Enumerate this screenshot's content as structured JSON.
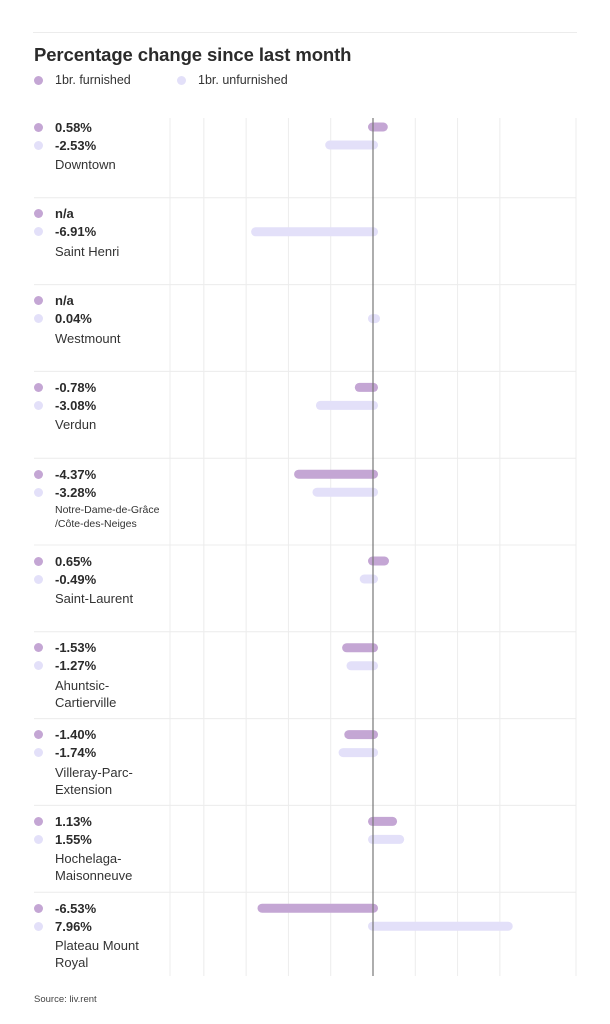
{
  "colors": {
    "furnished": "#c4a6d4",
    "unfurnished": "#e3e0f9",
    "zero_line": "#777777",
    "grid": "#ececec"
  },
  "chart_data": {
    "type": "bar",
    "orientation": "horizontal",
    "title": "Percentage change since last month",
    "legend": [
      "1br. furnished",
      "1br. unfurnished"
    ],
    "legend_placement": "top-left",
    "grid": true,
    "xlim": [
      -12,
      8
    ],
    "categories": [
      "Downtown",
      "Saint Henri",
      "Westmount",
      "Verdun",
      "Notre-Dame-de-Grâce /Côte-des-Neiges",
      "Saint-Laurent",
      "Ahuntsic-Cartierville",
      "Villeray-Parc-Extension",
      "Hochelaga-Maisonneuve",
      "Plateau Mount Royal"
    ],
    "category_lines": [
      [
        "Downtown"
      ],
      [
        "Saint Henri"
      ],
      [
        "Westmount"
      ],
      [
        "Verdun"
      ],
      [
        "Notre-Dame-de-Grâce",
        "/Côte-des-Neiges"
      ],
      [
        "Saint-Laurent"
      ],
      [
        "Ahuntsic-",
        "Cartierville"
      ],
      [
        "Villeray-Parc-",
        "Extension"
      ],
      [
        "Hochelaga-",
        "Maisonneuve"
      ],
      [
        "Plateau Mount",
        "Royal"
      ]
    ],
    "series": [
      {
        "name": "1br. furnished",
        "values": [
          0.58,
          null,
          null,
          -0.78,
          -4.37,
          0.65,
          -1.53,
          -1.4,
          1.13,
          -6.53
        ],
        "labels": [
          "0.58%",
          "n/a",
          "n/a",
          "-0.78%",
          "-4.37%",
          "0.65%",
          "-1.53%",
          "-1.40%",
          "1.13%",
          "-6.53%"
        ]
      },
      {
        "name": "1br. unfurnished",
        "values": [
          -2.53,
          -6.91,
          0.04,
          -3.08,
          -3.28,
          -0.49,
          -1.27,
          -1.74,
          1.55,
          7.96
        ],
        "labels": [
          "-2.53%",
          "-6.91%",
          "0.04%",
          "-3.08%",
          "-3.28%",
          "-0.49%",
          "-1.27%",
          "-1.74%",
          "1.55%",
          "7.96%"
        ]
      }
    ],
    "source": "Source: liv.rent"
  }
}
